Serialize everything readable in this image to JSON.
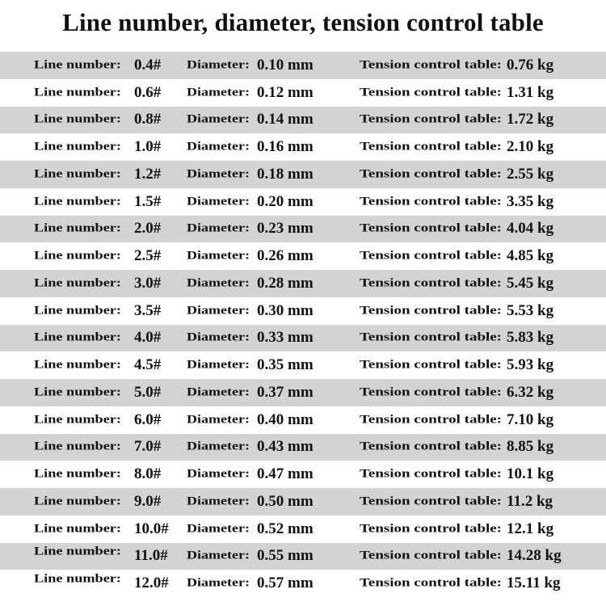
{
  "title": "Line number, diameter, tension control table",
  "labels": {
    "line_number": "Line number:",
    "diameter": "Diameter:",
    "tension": "Tension control table:"
  },
  "row_colors": {
    "gray": "#d3d3d3",
    "white": "#ffffff"
  },
  "rows": [
    {
      "line": "0.4#",
      "diameter": "0.10 mm",
      "tension": "0.76 kg"
    },
    {
      "line": "0.6#",
      "diameter": "0.12 mm",
      "tension": "1.31 kg"
    },
    {
      "line": "0.8#",
      "diameter": "0.14 mm",
      "tension": "1.72 kg"
    },
    {
      "line": "1.0#",
      "diameter": "0.16 mm",
      "tension": "2.10 kg"
    },
    {
      "line": "1.2#",
      "diameter": "0.18 mm",
      "tension": "2.55 kg"
    },
    {
      "line": "1.5#",
      "diameter": "0.20 mm",
      "tension": "3.35 kg"
    },
    {
      "line": "2.0#",
      "diameter": "0.23 mm",
      "tension": "4.04 kg"
    },
    {
      "line": "2.5#",
      "diameter": "0.26 mm",
      "tension": "4.85 kg"
    },
    {
      "line": "3.0#",
      "diameter": "0.28 mm",
      "tension": "5.45 kg"
    },
    {
      "line": "3.5#",
      "diameter": "0.30 mm",
      "tension": "5.53 kg"
    },
    {
      "line": "4.0#",
      "diameter": "0.33 mm",
      "tension": "5.83 kg"
    },
    {
      "line": "4.5#",
      "diameter": "0.35 mm",
      "tension": "5.93 kg"
    },
    {
      "line": "5.0#",
      "diameter": "0.37 mm",
      "tension": "6.32 kg"
    },
    {
      "line": "6.0#",
      "diameter": "0.40 mm",
      "tension": "7.10 kg"
    },
    {
      "line": "7.0#",
      "diameter": "0.43 mm",
      "tension": "8.85 kg"
    },
    {
      "line": "8.0#",
      "diameter": "0.47 mm",
      "tension": "10.1 kg"
    },
    {
      "line": "9.0#",
      "diameter": "0.50 mm",
      "tension": "11.2 kg"
    },
    {
      "line": "10.0#",
      "diameter": "0.52 mm",
      "tension": "12.1 kg"
    },
    {
      "line": "11.0#",
      "diameter": "0.55 mm",
      "tension": "14.28 kg"
    },
    {
      "line": "12.0#",
      "diameter": "0.57 mm",
      "tension": "15.11 kg"
    }
  ]
}
